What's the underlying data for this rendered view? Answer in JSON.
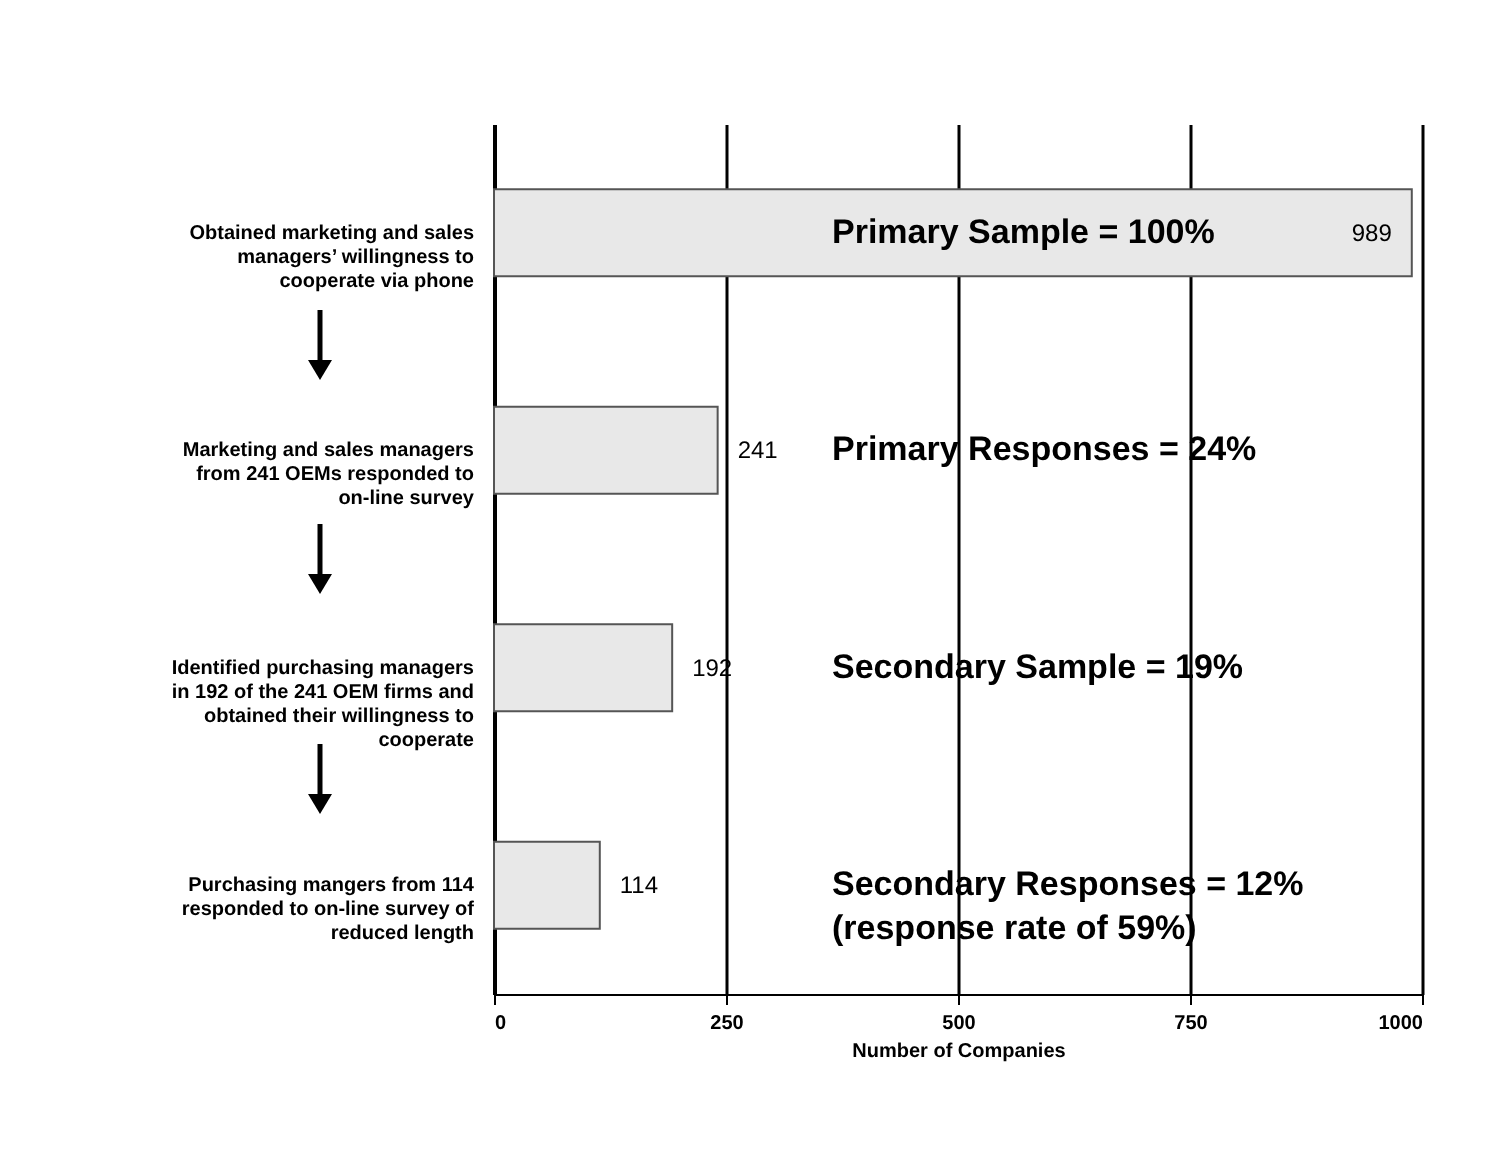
{
  "chart_data": {
    "type": "bar",
    "orientation": "horizontal",
    "xlabel": "Number of Companies",
    "categories": [
      "Obtained marketing and sales managers’ willingness to cooperate via phone",
      "Marketing and sales managers from 241 OEMs responded to on-line survey",
      "Identified purchasing managers in 192 of the 241 OEM firms and obtained their willingness to cooperate",
      "Purchasing mangers from 114 responded to on-line survey of reduced length"
    ],
    "values": [
      989,
      241,
      192,
      114
    ],
    "color": "#e8e8e8",
    "data_labels": true,
    "xlim": [
      0,
      1000
    ],
    "xticks": [
      0,
      250,
      500,
      750,
      1000
    ],
    "grid": "x",
    "annotations": [
      "Primary Sample = 100%",
      "Primary Responses = 24%",
      "Secondary Sample = 19%",
      "Secondary Responses = 12%\n(response rate of 59%)"
    ]
  }
}
